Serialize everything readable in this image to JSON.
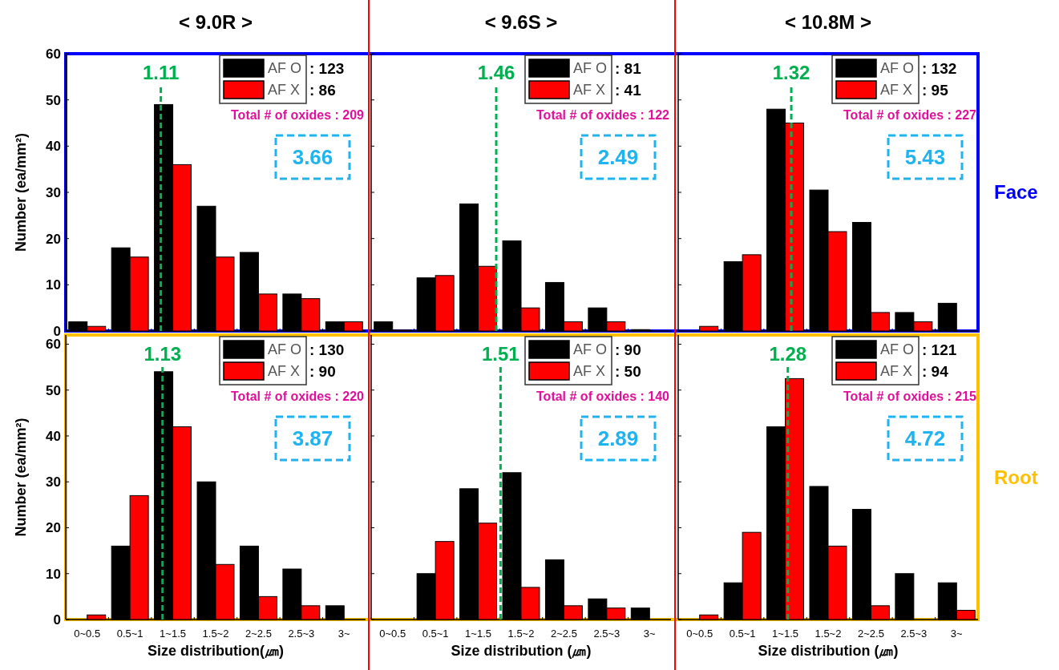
{
  "chart_data": [
    {
      "type": "bar",
      "title": "< 9.0R >",
      "ylabel": "Number (ea/mm²)",
      "categories": [
        "0~0.5",
        "0.5~1",
        "1~1.5",
        "1.5~2",
        "2~2.5",
        "2.5~3",
        "3~"
      ],
      "series": [
        {
          "name": "AF O",
          "color": "#000000",
          "values": [
            2,
            18,
            49,
            27,
            17,
            8,
            2
          ]
        },
        {
          "name": "AF X",
          "color": "#ff0000",
          "values": [
            1,
            16,
            36,
            16,
            8,
            7,
            2
          ]
        }
      ],
      "ylim": [
        0,
        60
      ],
      "yticks": [
        0,
        10,
        20,
        30,
        40,
        50,
        60
      ],
      "tick_labels": "y",
      "legend": "top right",
      "ref_lines": [
        {
          "axis": "x",
          "value": "1~1.5",
          "label": "1.11",
          "color": "#00b050",
          "line_style": "dashed"
        }
      ],
      "annotations": [
        ": 123",
        ": 86",
        "Total # of oxides : 209",
        "3.66"
      ]
    },
    {
      "type": "bar",
      "title": "< 9.6S >",
      "categories": [
        "0~0.5",
        "0.5~1",
        "1~1.5",
        "1.5~2",
        "2~2.5",
        "2.5~3",
        "3~"
      ],
      "series": [
        {
          "name": "AF O",
          "color": "#000000",
          "values": [
            2,
            11.5,
            27.5,
            19.5,
            10.5,
            5,
            0.3
          ]
        },
        {
          "name": "AF X",
          "color": "#ff0000",
          "values": [
            0.2,
            12,
            14,
            5,
            2,
            2,
            0
          ]
        }
      ],
      "ylim": [
        0,
        60
      ],
      "yticks": [
        0,
        10,
        20,
        30,
        40,
        50,
        60
      ],
      "tick_labels": false,
      "legend": "top right",
      "ref_lines": [
        {
          "axis": "x",
          "value": "1~1.5",
          "label": "1.46",
          "color": "#00b050",
          "line_style": "dashed"
        }
      ],
      "annotations": [
        ": 81",
        ": 41",
        "Total # of oxides : 122",
        "2.49"
      ]
    },
    {
      "type": "bar",
      "title": "< 10.8M >",
      "categories": [
        "0~0.5",
        "0.5~1",
        "1~1.5",
        "1.5~2",
        "2~2.5",
        "2.5~3",
        "3~"
      ],
      "series": [
        {
          "name": "AF O",
          "color": "#000000",
          "values": [
            0,
            15,
            48,
            30.5,
            23.5,
            4,
            6
          ]
        },
        {
          "name": "AF X",
          "color": "#ff0000",
          "values": [
            1,
            16.5,
            45,
            21.5,
            4,
            2,
            0
          ]
        }
      ],
      "ylim": [
        0,
        60
      ],
      "yticks": [
        0,
        10,
        20,
        30,
        40,
        50,
        60
      ],
      "tick_labels": false,
      "legend": "top right",
      "ref_lines": [
        {
          "axis": "x",
          "value": "1~1.5",
          "label": "1.32",
          "color": "#00b050",
          "line_style": "dashed"
        }
      ],
      "annotations": [
        ": 132",
        ": 95",
        "Total # of oxides : 227",
        "5.43",
        "Face"
      ]
    },
    {
      "type": "bar",
      "xlabel": "Size distribution(㎛)",
      "ylabel": "Number (ea/mm²)",
      "categories": [
        "0~0.5",
        "0.5~1",
        "1~1.5",
        "1.5~2",
        "2~2.5",
        "2.5~3",
        "3~"
      ],
      "series": [
        {
          "name": "AF O",
          "color": "#000000",
          "values": [
            0,
            16,
            54,
            30,
            16,
            11,
            3
          ]
        },
        {
          "name": "AF X",
          "color": "#ff0000",
          "values": [
            1,
            27,
            42,
            12,
            5,
            3,
            0
          ]
        }
      ],
      "ylim": [
        0,
        62
      ],
      "yticks": [
        0,
        10,
        20,
        30,
        40,
        50,
        60
      ],
      "legend": "top right",
      "ref_lines": [
        {
          "axis": "x",
          "value": "1~1.5",
          "label": "1.13",
          "color": "#00b050",
          "line_style": "dashed"
        }
      ],
      "annotations": [
        ": 130",
        ": 90",
        "Total # of oxides : 220",
        "3.87"
      ]
    },
    {
      "type": "bar",
      "xlabel": "Size distribution (㎛)",
      "categories": [
        "0~0.5",
        "0.5~1",
        "1~1.5",
        "1.5~2",
        "2~2.5",
        "2.5~3",
        "3~"
      ],
      "series": [
        {
          "name": "AF O",
          "color": "#000000",
          "values": [
            0,
            10,
            28.5,
            32,
            13,
            4.5,
            2.5
          ]
        },
        {
          "name": "AF X",
          "color": "#ff0000",
          "values": [
            0,
            17,
            21,
            7,
            3,
            2.5,
            0
          ]
        }
      ],
      "ylim": [
        0,
        62
      ],
      "yticks": [
        0,
        10,
        20,
        30,
        40,
        50,
        60
      ],
      "tick_labels": "x",
      "legend": "top right",
      "ref_lines": [
        {
          "axis": "x",
          "value": "1.5~2",
          "label": "1.51",
          "color": "#00b050",
          "line_style": "dashed"
        }
      ],
      "annotations": [
        ": 90",
        ": 50",
        "Total # of oxides : 140",
        "2.89"
      ]
    },
    {
      "type": "bar",
      "xlabel": "Size distribution (㎛)",
      "categories": [
        "0~0.5",
        "0.5~1",
        "1~1.5",
        "1.5~2",
        "2~2.5",
        "2.5~3",
        "3~"
      ],
      "series": [
        {
          "name": "AF O",
          "color": "#000000",
          "values": [
            0,
            8,
            42,
            29,
            24,
            10,
            8
          ]
        },
        {
          "name": "AF X",
          "color": "#ff0000",
          "values": [
            1,
            19,
            52.5,
            16,
            3,
            0,
            2
          ]
        }
      ],
      "ylim": [
        0,
        62
      ],
      "yticks": [
        0,
        10,
        20,
        30,
        40,
        50,
        60
      ],
      "tick_labels": "x",
      "legend": "top right",
      "ref_lines": [
        {
          "axis": "x",
          "value": "1~1.5",
          "label": "1.28",
          "color": "#00b050",
          "line_style": "dashed"
        }
      ],
      "annotations": [
        ": 121",
        ": 94",
        "Total # of oxides : 215",
        "4.72",
        "Root"
      ]
    }
  ]
}
